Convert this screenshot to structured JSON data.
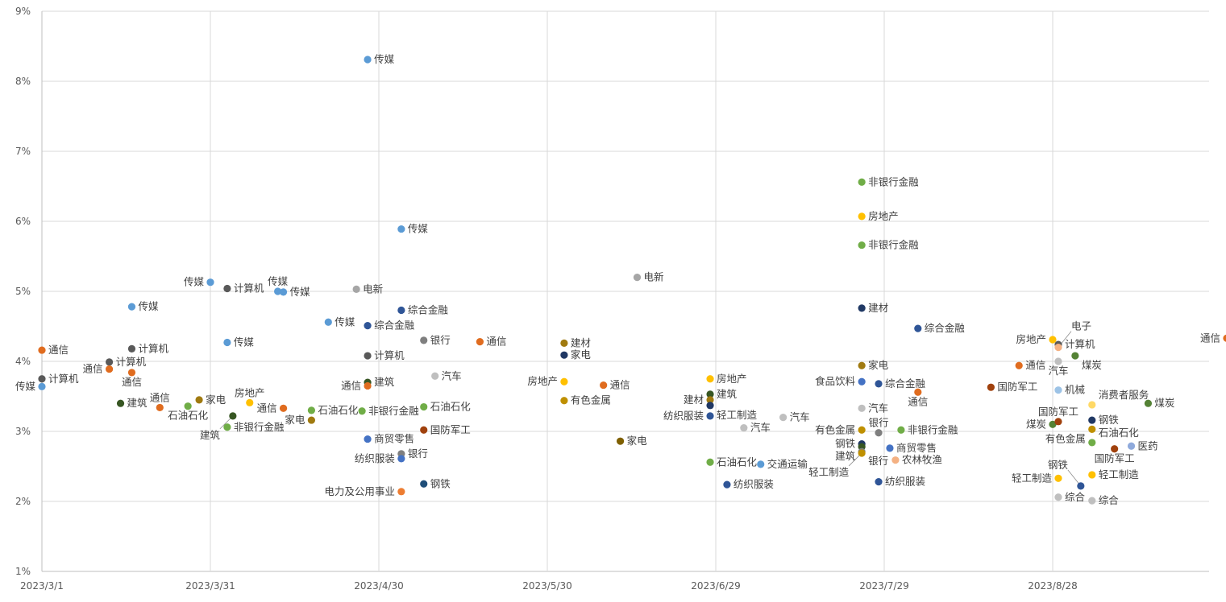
{
  "chart_data": {
    "type": "scatter",
    "x_axis": {
      "type": "date",
      "min": "2023-03-01",
      "max": "2023-09-30",
      "ticks": [
        "2023-03-01",
        "2023-03-31",
        "2023-04-30",
        "2023-05-30",
        "2023-06-29",
        "2023-07-29",
        "2023-08-28"
      ],
      "tick_labels": [
        "2023/3/1",
        "2023/3/31",
        "2023/4/30",
        "2023/5/30",
        "2023/6/29",
        "2023/7/29",
        "2023/8/28"
      ]
    },
    "y_axis": {
      "min": 0.01,
      "max": 0.09,
      "ticks": [
        0.01,
        0.02,
        0.03,
        0.04,
        0.05,
        0.06,
        0.07,
        0.08,
        0.09
      ],
      "tick_labels": [
        "1%",
        "2%",
        "3%",
        "4%",
        "5%",
        "6%",
        "7%",
        "8%",
        "9%"
      ]
    },
    "grid": true,
    "legend": "none",
    "points": [
      {
        "date": "2023-03-01",
        "y": 0.0416,
        "label": "通信",
        "color": "#e06c1f"
      },
      {
        "date": "2023-03-01",
        "y": 0.0375,
        "label": "计算机",
        "color": "#595959"
      },
      {
        "date": "2023-03-01",
        "y": 0.0364,
        "label": "传媒",
        "color": "#5b9bd5"
      },
      {
        "date": "2023-03-13",
        "y": 0.0399,
        "label": "计算机",
        "color": "#595959"
      },
      {
        "date": "2023-03-13",
        "y": 0.0389,
        "label": "通信",
        "color": "#e06c1f"
      },
      {
        "date": "2023-03-15",
        "y": 0.034,
        "label": "建筑",
        "color": "#375623"
      },
      {
        "date": "2023-03-17",
        "y": 0.0478,
        "label": "传媒",
        "color": "#5b9bd5"
      },
      {
        "date": "2023-03-17",
        "y": 0.0418,
        "label": "计算机",
        "color": "#595959"
      },
      {
        "date": "2023-03-17",
        "y": 0.0384,
        "label": "通信",
        "color": "#e06c1f"
      },
      {
        "date": "2023-03-22",
        "y": 0.0334,
        "label": "通信",
        "color": "#e06c1f"
      },
      {
        "date": "2023-03-27",
        "y": 0.0336,
        "label": "石油石化",
        "color": "#70ad47"
      },
      {
        "date": "2023-03-29",
        "y": 0.0345,
        "label": "家电",
        "color": "#a07a10"
      },
      {
        "date": "2023-03-31",
        "y": 0.0513,
        "label": "传媒",
        "color": "#5b9bd5"
      },
      {
        "date": "2023-04-03",
        "y": 0.0504,
        "label": "计算机",
        "color": "#595959"
      },
      {
        "date": "2023-04-03",
        "y": 0.0427,
        "label": "传媒",
        "color": "#5b9bd5"
      },
      {
        "date": "2023-04-03",
        "y": 0.0306,
        "label": "非银行金融",
        "color": "#70ad47"
      },
      {
        "date": "2023-04-04",
        "y": 0.0322,
        "label": "建筑",
        "color": "#375623"
      },
      {
        "date": "2023-04-07",
        "y": 0.0341,
        "label": "房地产",
        "color": "#ffc000"
      },
      {
        "date": "2023-04-12",
        "y": 0.05,
        "label": "传媒",
        "color": "#5b9bd5"
      },
      {
        "date": "2023-04-13",
        "y": 0.0499,
        "label": "传媒",
        "color": "#5b9bd5"
      },
      {
        "date": "2023-04-13",
        "y": 0.0333,
        "label": "通信",
        "color": "#e06c1f"
      },
      {
        "date": "2023-04-18",
        "y": 0.033,
        "label": "石油石化",
        "color": "#70ad47"
      },
      {
        "date": "2023-04-18",
        "y": 0.0316,
        "label": "家电",
        "color": "#a07a10"
      },
      {
        "date": "2023-04-21",
        "y": 0.0456,
        "label": "传媒",
        "color": "#5b9bd5"
      },
      {
        "date": "2023-04-26",
        "y": 0.0503,
        "label": "电新",
        "color": "#a6a6a6"
      },
      {
        "date": "2023-04-27",
        "y": 0.0329,
        "label": "非银行金融",
        "color": "#70ad47"
      },
      {
        "date": "2023-04-28",
        "y": 0.0831,
        "label": "传媒",
        "color": "#5b9bd5"
      },
      {
        "date": "2023-04-28",
        "y": 0.0451,
        "label": "综合金融",
        "color": "#2f5597"
      },
      {
        "date": "2023-04-28",
        "y": 0.0408,
        "label": "计算机",
        "color": "#595959"
      },
      {
        "date": "2023-04-28",
        "y": 0.037,
        "label": "建筑",
        "color": "#375623"
      },
      {
        "date": "2023-04-28",
        "y": 0.0365,
        "label": "通信",
        "color": "#e06c1f"
      },
      {
        "date": "2023-04-28",
        "y": 0.0289,
        "label": "商贸零售",
        "color": "#4472c4"
      },
      {
        "date": "2023-05-04",
        "y": 0.0589,
        "label": "传媒",
        "color": "#5b9bd5"
      },
      {
        "date": "2023-05-04",
        "y": 0.0473,
        "label": "综合金融",
        "color": "#2f5597"
      },
      {
        "date": "2023-05-04",
        "y": 0.0268,
        "label": "银行",
        "color": "#7f7f7f"
      },
      {
        "date": "2023-05-04",
        "y": 0.0261,
        "label": "纺织服装",
        "color": "#4472c4"
      },
      {
        "date": "2023-05-04",
        "y": 0.0214,
        "label": "电力及公用事业",
        "color": "#ed7d31"
      },
      {
        "date": "2023-05-08",
        "y": 0.043,
        "label": "银行",
        "color": "#7f7f7f"
      },
      {
        "date": "2023-05-08",
        "y": 0.0335,
        "label": "石油石化",
        "color": "#70ad47"
      },
      {
        "date": "2023-05-08",
        "y": 0.0302,
        "label": "国防军工",
        "color": "#a0410d"
      },
      {
        "date": "2023-05-08",
        "y": 0.0225,
        "label": "钢铁",
        "color": "#1f4e79"
      },
      {
        "date": "2023-05-10",
        "y": 0.0379,
        "label": "汽车",
        "color": "#bfbfbf"
      },
      {
        "date": "2023-05-18",
        "y": 0.0428,
        "label": "通信",
        "color": "#e06c1f"
      },
      {
        "date": "2023-06-02",
        "y": 0.0426,
        "label": "建材",
        "color": "#a07a10"
      },
      {
        "date": "2023-06-02",
        "y": 0.0409,
        "label": "家电",
        "color": "#203864"
      },
      {
        "date": "2023-06-02",
        "y": 0.0371,
        "label": "房地产",
        "color": "#ffc000"
      },
      {
        "date": "2023-06-02",
        "y": 0.0344,
        "label": "有色金属",
        "color": "#bf9000"
      },
      {
        "date": "2023-06-09",
        "y": 0.0366,
        "label": "通信",
        "color": "#e06c1f"
      },
      {
        "date": "2023-06-12",
        "y": 0.0286,
        "label": "家电",
        "color": "#7f6000"
      },
      {
        "date": "2023-06-15",
        "y": 0.052,
        "label": "电新",
        "color": "#a6a6a6"
      },
      {
        "date": "2023-06-28",
        "y": 0.0375,
        "label": "房地产",
        "color": "#ffc000"
      },
      {
        "date": "2023-06-28",
        "y": 0.0353,
        "label": "建筑",
        "color": "#375623"
      },
      {
        "date": "2023-06-28",
        "y": 0.0345,
        "label": "建材",
        "color": "#a07a10"
      },
      {
        "date": "2023-06-28",
        "y": 0.0337,
        "label": "轻工制造",
        "color": "#203864"
      },
      {
        "date": "2023-06-28",
        "y": 0.0322,
        "label": "纺织服装",
        "color": "#2f5597"
      },
      {
        "date": "2023-06-28",
        "y": 0.0256,
        "label": "石油石化",
        "color": "#70ad47"
      },
      {
        "date": "2023-07-01",
        "y": 0.0224,
        "label": "纺织服装",
        "color": "#2f5597"
      },
      {
        "date": "2023-07-04",
        "y": 0.0305,
        "label": "汽车",
        "color": "#bfbfbf"
      },
      {
        "date": "2023-07-07",
        "y": 0.0253,
        "label": "交通运输",
        "color": "#5b9bd5"
      },
      {
        "date": "2023-07-11",
        "y": 0.032,
        "label": "汽车",
        "color": "#bfbfbf"
      },
      {
        "date": "2023-07-25",
        "y": 0.0656,
        "label": "非银行金融",
        "color": "#70ad47"
      },
      {
        "date": "2023-07-25",
        "y": 0.0607,
        "label": "房地产",
        "color": "#ffc000"
      },
      {
        "date": "2023-07-25",
        "y": 0.0566,
        "label": "非银行金融",
        "color": "#70ad47"
      },
      {
        "date": "2023-07-25",
        "y": 0.0476,
        "label": "建材",
        "color": "#203864"
      },
      {
        "date": "2023-07-25",
        "y": 0.0394,
        "label": "家电",
        "color": "#a07a10"
      },
      {
        "date": "2023-07-25",
        "y": 0.0371,
        "label": "食品饮料",
        "color": "#4472c4"
      },
      {
        "date": "2023-07-25",
        "y": 0.0333,
        "label": "汽车",
        "color": "#bfbfbf"
      },
      {
        "date": "2023-07-25",
        "y": 0.0302,
        "label": "有色金属",
        "color": "#bf9000"
      },
      {
        "date": "2023-07-25",
        "y": 0.0282,
        "label": "钢铁",
        "color": "#203864"
      },
      {
        "date": "2023-07-25",
        "y": 0.0278,
        "label": "建筑",
        "color": "#375623"
      },
      {
        "date": "2023-07-25",
        "y": 0.0271,
        "label": "银行",
        "color": "#7f7f7f"
      },
      {
        "date": "2023-07-25",
        "y": 0.0269,
        "label": "轻工制造",
        "color": "#bf9000"
      },
      {
        "date": "2023-07-28",
        "y": 0.0368,
        "label": "综合金融",
        "color": "#2f5597"
      },
      {
        "date": "2023-07-28",
        "y": 0.0298,
        "label": "银行",
        "color": "#7f7f7f"
      },
      {
        "date": "2023-07-28",
        "y": 0.0228,
        "label": "纺织服装",
        "color": "#2f5597"
      },
      {
        "date": "2023-07-30",
        "y": 0.0276,
        "label": "商贸零售",
        "color": "#4472c4"
      },
      {
        "date": "2023-07-31",
        "y": 0.0259,
        "label": "农林牧渔",
        "color": "#f4b183"
      },
      {
        "date": "2023-08-01",
        "y": 0.0302,
        "label": "非银行金融",
        "color": "#70ad47"
      },
      {
        "date": "2023-08-04",
        "y": 0.0447,
        "label": "综合金融",
        "color": "#2f5597"
      },
      {
        "date": "2023-08-04",
        "y": 0.0356,
        "label": "通信",
        "color": "#e06c1f"
      },
      {
        "date": "2023-08-17",
        "y": 0.0363,
        "label": "国防军工",
        "color": "#a0410d"
      },
      {
        "date": "2023-08-22",
        "y": 0.0394,
        "label": "通信",
        "color": "#e06c1f"
      },
      {
        "date": "2023-08-28",
        "y": 0.0431,
        "label": "房地产",
        "color": "#ffc000"
      },
      {
        "date": "2023-08-28",
        "y": 0.031,
        "label": "煤炭",
        "color": "#548235"
      },
      {
        "date": "2023-08-29",
        "y": 0.0424,
        "label": "计算机",
        "color": "#595959"
      },
      {
        "date": "2023-08-29",
        "y": 0.042,
        "label": "电子",
        "color": "#f4b183"
      },
      {
        "date": "2023-08-29",
        "y": 0.04,
        "label": "汽车",
        "color": "#bfbfbf"
      },
      {
        "date": "2023-08-29",
        "y": 0.0359,
        "label": "机械",
        "color": "#9dc3e6"
      },
      {
        "date": "2023-08-29",
        "y": 0.0314,
        "label": "国防军工",
        "color": "#a0410d"
      },
      {
        "date": "2023-08-29",
        "y": 0.0233,
        "label": "轻工制造",
        "color": "#ffc000"
      },
      {
        "date": "2023-08-29",
        "y": 0.0206,
        "label": "综合",
        "color": "#bfbfbf"
      },
      {
        "date": "2023-09-01",
        "y": 0.0408,
        "label": "煤炭",
        "color": "#548235"
      },
      {
        "date": "2023-09-04",
        "y": 0.0338,
        "label": "消费者服务",
        "color": "#ffd966"
      },
      {
        "date": "2023-09-04",
        "y": 0.0316,
        "label": "钢铁",
        "color": "#203864"
      },
      {
        "date": "2023-09-04",
        "y": 0.0303,
        "label": "有色金属",
        "color": "#bf9000"
      },
      {
        "date": "2023-09-04",
        "y": 0.0284,
        "label": "石油石化",
        "color": "#70ad47"
      },
      {
        "date": "2023-09-04",
        "y": 0.0238,
        "label": "轻工制造",
        "color": "#ffc000"
      },
      {
        "date": "2023-09-04",
        "y": 0.0201,
        "label": "综合",
        "color": "#bfbfbf"
      },
      {
        "date": "2023-09-02",
        "y": 0.0222,
        "label": "钢铁",
        "color": "#2f5597"
      },
      {
        "date": "2023-09-08",
        "y": 0.0275,
        "label": "国防军工",
        "color": "#a0410d"
      },
      {
        "date": "2023-09-11",
        "y": 0.0279,
        "label": "医药",
        "color": "#8faadc"
      },
      {
        "date": "2023-09-14",
        "y": 0.034,
        "label": "煤炭",
        "color": "#548235"
      },
      {
        "date": "2023-09-28",
        "y": 0.0433,
        "label": "通信",
        "color": "#e06c1f"
      }
    ]
  }
}
